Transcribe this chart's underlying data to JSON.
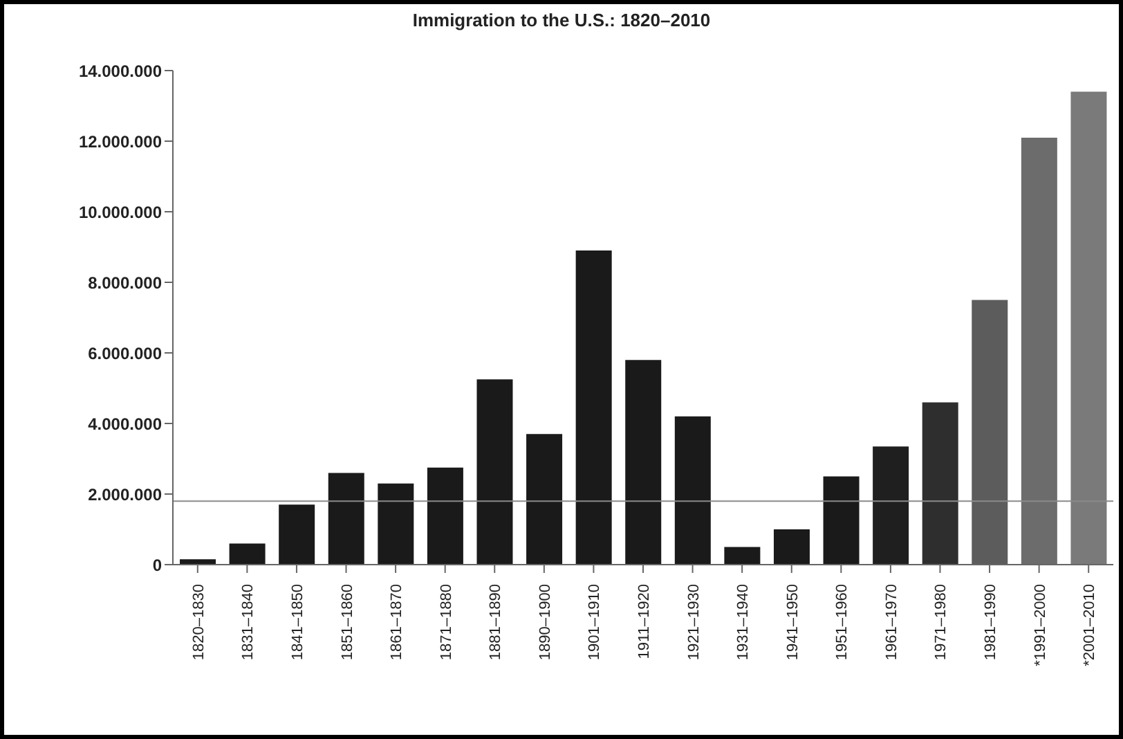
{
  "chart_data": {
    "type": "bar",
    "title": "Immigration to the U.S.: 1820–2010",
    "categories": [
      "1820–1830",
      "1831–1840",
      "1841–1850",
      "1851–1860",
      "1861–1870",
      "1871–1880",
      "1881–1890",
      "1890–1900",
      "1901–1910",
      "1911–1920",
      "1921–1930",
      "1931–1940",
      "1941–1950",
      "1951–1960",
      "1961–1970",
      "1971–1980",
      "1981–1990",
      "*1991–2000",
      "*2001–2010"
    ],
    "values": [
      150000,
      600000,
      1700000,
      2600000,
      2300000,
      2750000,
      5250000,
      3700000,
      8900000,
      5800000,
      4200000,
      500000,
      1000000,
      2500000,
      3350000,
      4600000,
      7500000,
      12100000,
      13400000
    ],
    "colors": [
      "#1a1a1a",
      "#1a1a1a",
      "#1a1a1a",
      "#1a1a1a",
      "#1a1a1a",
      "#1a1a1a",
      "#1a1a1a",
      "#1a1a1a",
      "#1a1a1a",
      "#1a1a1a",
      "#1a1a1a",
      "#1a1a1a",
      "#1a1a1a",
      "#1a1a1a",
      "#1f1f1f",
      "#2e2e2e",
      "#5c5c5c",
      "#6c6c6c",
      "#7a7a7a"
    ],
    "ylim": [
      0,
      14000000
    ],
    "yticks": [
      0,
      {
        "value": 2000000,
        "label": "2.000.000"
      },
      {
        "value": 4000000,
        "label": "4.000.000"
      },
      {
        "value": 6000000,
        "label": "6.000.000"
      },
      {
        "value": 8000000,
        "label": "8.000.000"
      },
      {
        "value": 10000000,
        "label": "10.000.000"
      },
      {
        "value": 12000000,
        "label": "12.000.000"
      },
      {
        "value": 14000000,
        "label": "14.000.000"
      }
    ],
    "ref_lines": [
      {
        "axis": "y",
        "value": 1800000,
        "color": "#8a8a8a"
      }
    ],
    "grid": false,
    "legend": false
  }
}
